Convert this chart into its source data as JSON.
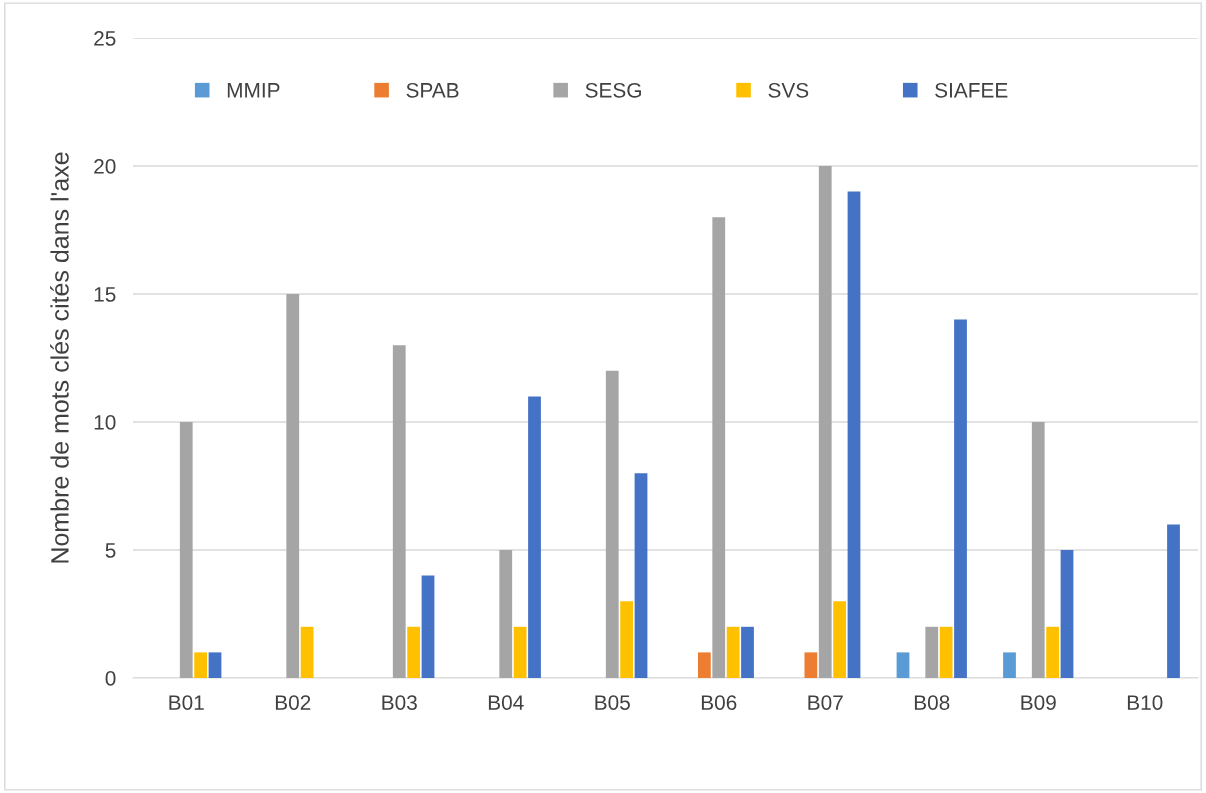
{
  "chart_data": {
    "type": "bar",
    "ylabel": "Nombre de mots clés cités dans l'axe",
    "categories": [
      "B01",
      "B02",
      "B03",
      "B04",
      "B05",
      "B06",
      "B07",
      "B08",
      "B09",
      "B10"
    ],
    "series": [
      {
        "name": "MMIP",
        "color": "#5b9bd5",
        "values": [
          0,
          0,
          0,
          0,
          0,
          0,
          0,
          1,
          1,
          0
        ]
      },
      {
        "name": "SPAB",
        "color": "#ed7d31",
        "values": [
          0,
          0,
          0,
          0,
          0,
          1,
          1,
          0,
          0,
          0
        ]
      },
      {
        "name": "SESG",
        "color": "#a5a5a5",
        "values": [
          10,
          15,
          13,
          5,
          12,
          18,
          20,
          2,
          10,
          0
        ]
      },
      {
        "name": "SVS",
        "color": "#ffc000",
        "values": [
          1,
          2,
          2,
          2,
          3,
          2,
          3,
          2,
          2,
          0
        ]
      },
      {
        "name": "SIAFEE",
        "color": "#4472c4",
        "values": [
          1,
          0,
          4,
          11,
          8,
          2,
          19,
          14,
          5,
          6
        ]
      }
    ],
    "ylim": [
      0,
      25
    ],
    "yticks": [
      0,
      5,
      10,
      15,
      20,
      25
    ],
    "grid": "y",
    "legend": "top"
  }
}
